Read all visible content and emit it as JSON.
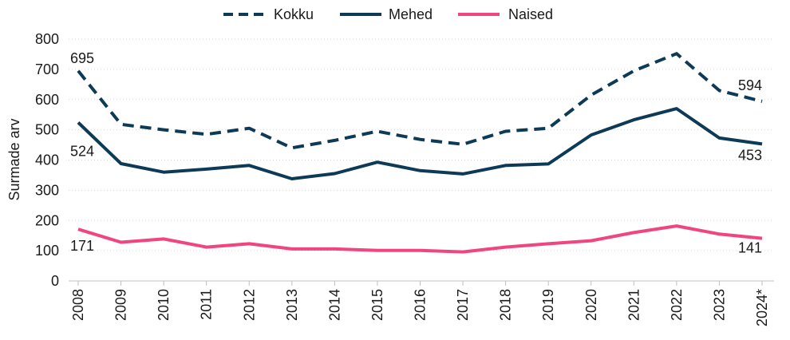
{
  "chart_data": {
    "type": "line",
    "title": "",
    "xlabel": "",
    "ylabel": "Surmade arv",
    "ylim": [
      0,
      800
    ],
    "yticks": [
      0,
      100,
      200,
      300,
      400,
      500,
      600,
      700,
      800
    ],
    "grid": true,
    "legend_position": "top-center",
    "categories": [
      "2008",
      "2009",
      "2010",
      "2011",
      "2012",
      "2013",
      "2014",
      "2015",
      "2016",
      "2017",
      "2018",
      "2019",
      "2020",
      "2021",
      "2022",
      "2023",
      "2024*"
    ],
    "series": [
      {
        "name": "Kokku",
        "color": "#0d3a56",
        "style": "dashed",
        "values": [
          695,
          518,
          500,
          485,
          505,
          440,
          465,
          495,
          468,
          452,
          495,
          505,
          615,
          695,
          752,
          630,
          594
        ],
        "labels": [
          {
            "index": 0,
            "text": "695"
          },
          {
            "index": 16,
            "text": "594"
          }
        ]
      },
      {
        "name": "Mehed",
        "color": "#0d3a56",
        "style": "solid",
        "values": [
          524,
          388,
          360,
          370,
          382,
          338,
          355,
          393,
          365,
          354,
          382,
          387,
          483,
          533,
          570,
          473,
          453
        ],
        "labels": [
          {
            "index": 0,
            "text": "524"
          },
          {
            "index": 16,
            "text": "453"
          }
        ]
      },
      {
        "name": "Naised",
        "color": "#f0457e",
        "style": "solid",
        "values": [
          171,
          128,
          139,
          112,
          123,
          106,
          106,
          101,
          101,
          96,
          112,
          123,
          133,
          160,
          182,
          155,
          141
        ],
        "labels": [
          {
            "index": 0,
            "text": "171"
          },
          {
            "index": 16,
            "text": "141"
          }
        ]
      }
    ]
  }
}
